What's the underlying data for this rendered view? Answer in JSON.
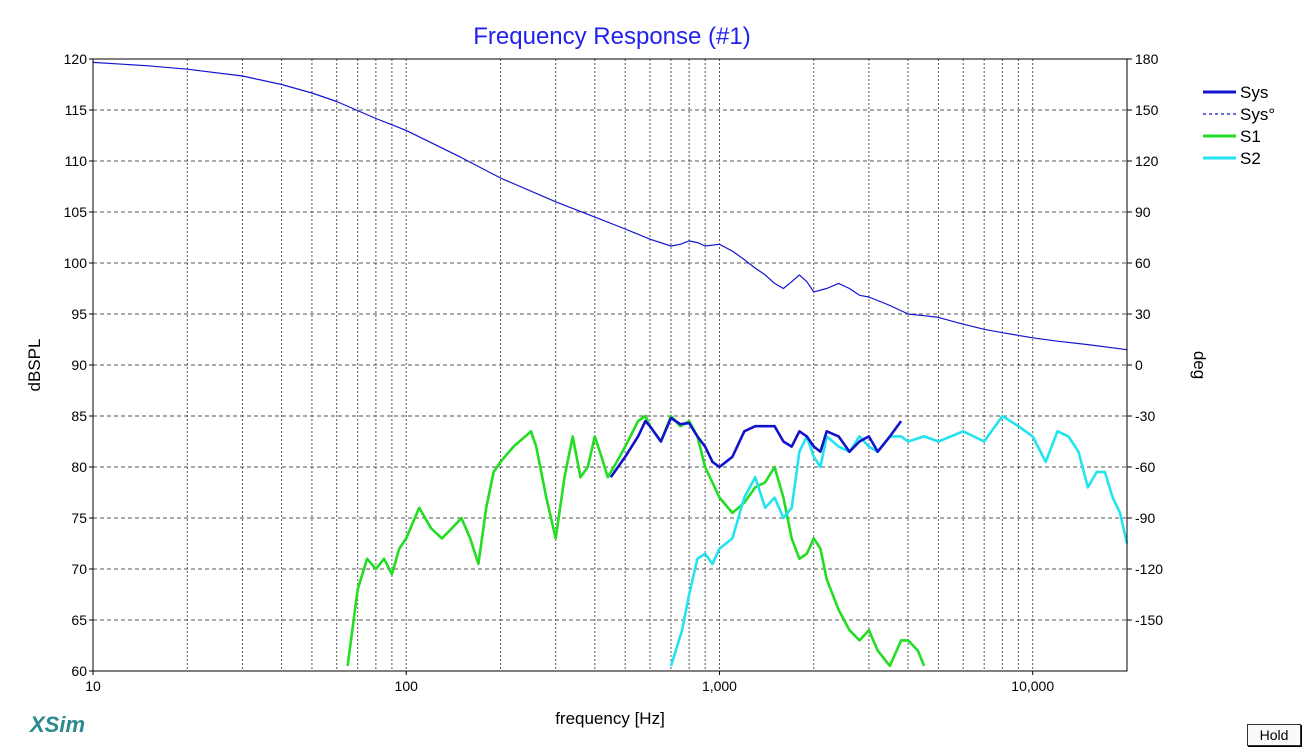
{
  "chart_data": {
    "type": "line",
    "title": "Frequency Response (#1)",
    "xlabel": "frequency [Hz]",
    "ylabel": "dBSPL",
    "y2label": "deg",
    "xscale": "log",
    "xlim": [
      10,
      20000
    ],
    "ylim": [
      60,
      120
    ],
    "y2lim": [
      -180,
      180
    ],
    "grid": true,
    "legend_position": "top-right",
    "x_ticks": [
      10,
      100,
      1000,
      10000
    ],
    "x_tick_labels": [
      "10",
      "100",
      "1,000",
      "10,000"
    ],
    "y_ticks": [
      60,
      65,
      70,
      75,
      80,
      85,
      90,
      95,
      100,
      105,
      110,
      115,
      120
    ],
    "y2_ticks": [
      180,
      150,
      120,
      90,
      60,
      30,
      0,
      -30,
      -60,
      -90,
      -120,
      -150
    ],
    "series": [
      {
        "name": "Sys°",
        "axis": "right",
        "style": "thin",
        "color": "#1414d4",
        "x": [
          10,
          15,
          20,
          30,
          40,
          50,
          60,
          80,
          100,
          150,
          200,
          300,
          400,
          500,
          600,
          700,
          750,
          800,
          850,
          900,
          1000,
          1100,
          1200,
          1300,
          1400,
          1500,
          1600,
          1700,
          1800,
          1900,
          2000,
          2200,
          2400,
          2600,
          2800,
          3000,
          3500,
          4000,
          4500,
          5000,
          6000,
          7000,
          8000,
          10000,
          12000,
          15000,
          20000
        ],
        "y": [
          178,
          176,
          174,
          170,
          165,
          160,
          155,
          145,
          138,
          122,
          110,
          96,
          87,
          80,
          74,
          70,
          71,
          73,
          72,
          70,
          71,
          67,
          62,
          57,
          53,
          48,
          45,
          49,
          53,
          49,
          43,
          45,
          48,
          45,
          41,
          40,
          35,
          30,
          29,
          28,
          24,
          21,
          19,
          16,
          14,
          12,
          9
        ]
      },
      {
        "name": "S1",
        "axis": "left",
        "style": "thick",
        "color": "#22dd22",
        "x": [
          65,
          70,
          75,
          80,
          85,
          90,
          95,
          100,
          110,
          120,
          130,
          140,
          150,
          160,
          170,
          180,
          190,
          200,
          220,
          240,
          250,
          260,
          280,
          300,
          320,
          340,
          360,
          380,
          400,
          420,
          440,
          460,
          480,
          500,
          550,
          580,
          600,
          650,
          700,
          750,
          800,
          850,
          900,
          1000,
          1100,
          1200,
          1300,
          1400,
          1500,
          1600,
          1700,
          1800,
          1900,
          2000,
          2100,
          2200,
          2400,
          2600,
          2800,
          3000,
          3200,
          3500,
          3800,
          4000,
          4300,
          4500
        ],
        "y": [
          60.5,
          68,
          71,
          70,
          71,
          69.5,
          72,
          73,
          76,
          74,
          73,
          74,
          75,
          73,
          70.5,
          76,
          79.5,
          80.5,
          82,
          83,
          83.5,
          82,
          77,
          73,
          79,
          83,
          79,
          80,
          83,
          81,
          79,
          80,
          81,
          82,
          84.5,
          85,
          84,
          82.5,
          85,
          84,
          84.5,
          83,
          80,
          77,
          75.5,
          76.5,
          78,
          78.5,
          80,
          77,
          73,
          71,
          71.5,
          73,
          72,
          69,
          66,
          64,
          63,
          64,
          62,
          60.5,
          63,
          63,
          62,
          60.5
        ]
      },
      {
        "name": "S2",
        "axis": "left",
        "style": "thick",
        "color": "#22e3f0",
        "x": [
          700,
          760,
          800,
          850,
          900,
          950,
          1000,
          1100,
          1200,
          1300,
          1400,
          1500,
          1600,
          1700,
          1800,
          1900,
          2000,
          2100,
          2200,
          2400,
          2600,
          2800,
          3000,
          3200,
          3500,
          3800,
          4000,
          4500,
          5000,
          6000,
          7000,
          8000,
          9000,
          10000,
          11000,
          12000,
          13000,
          14000,
          15000,
          16000,
          17000,
          18000,
          19000,
          20000
        ],
        "y": [
          60.5,
          64,
          67.5,
          71,
          71.5,
          70.5,
          72,
          73,
          77,
          79,
          76,
          77,
          75,
          76,
          81.5,
          83,
          81,
          80,
          83,
          82,
          81.5,
          83,
          82,
          81.5,
          83,
          83,
          82.5,
          83,
          82.5,
          83.5,
          82.5,
          85,
          84,
          83,
          80.5,
          83.5,
          83,
          81.5,
          78,
          79.5,
          79.5,
          77,
          75.5,
          72.5
        ]
      },
      {
        "name": "Sys",
        "axis": "left",
        "style": "thick",
        "color": "#1212cc",
        "x": [
          450,
          500,
          550,
          580,
          600,
          650,
          700,
          750,
          800,
          850,
          900,
          950,
          1000,
          1100,
          1200,
          1300,
          1400,
          1500,
          1600,
          1700,
          1800,
          1900,
          2000,
          2100,
          2200,
          2400,
          2600,
          2800,
          3000,
          3200,
          3500,
          3800
        ],
        "y": [
          79,
          81,
          83,
          84.5,
          84,
          82.5,
          84.8,
          84.2,
          84.3,
          83,
          82,
          80.5,
          80,
          81,
          83.5,
          84,
          84,
          84,
          82.5,
          82,
          83.5,
          83,
          82,
          81.5,
          83.5,
          83,
          81.5,
          82.5,
          83,
          81.5,
          83,
          84.5
        ]
      }
    ]
  },
  "ui": {
    "brand": "XSim",
    "hold_label": "Hold"
  }
}
